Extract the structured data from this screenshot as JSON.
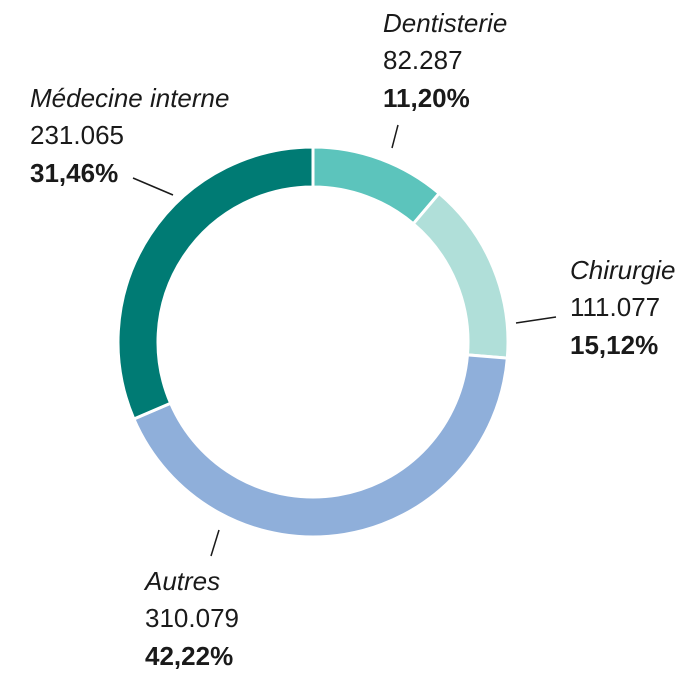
{
  "chart_data": {
    "type": "donut",
    "categories": [
      "Dentisterie",
      "Chirurgie",
      "Autres",
      "Médecine interne"
    ],
    "values": [
      11.2,
      15.12,
      42.22,
      31.46
    ],
    "value_labels": [
      "11,20%",
      "15,12%",
      "42,22%",
      "31,46%"
    ],
    "counts": [
      82287,
      111077,
      310079,
      231065
    ],
    "count_labels": [
      "82.287",
      "111.077",
      "310.079",
      "231.065"
    ],
    "colors": [
      "#5cc4bc",
      "#b0dfd9",
      "#8fafda",
      "#007b74"
    ]
  }
}
